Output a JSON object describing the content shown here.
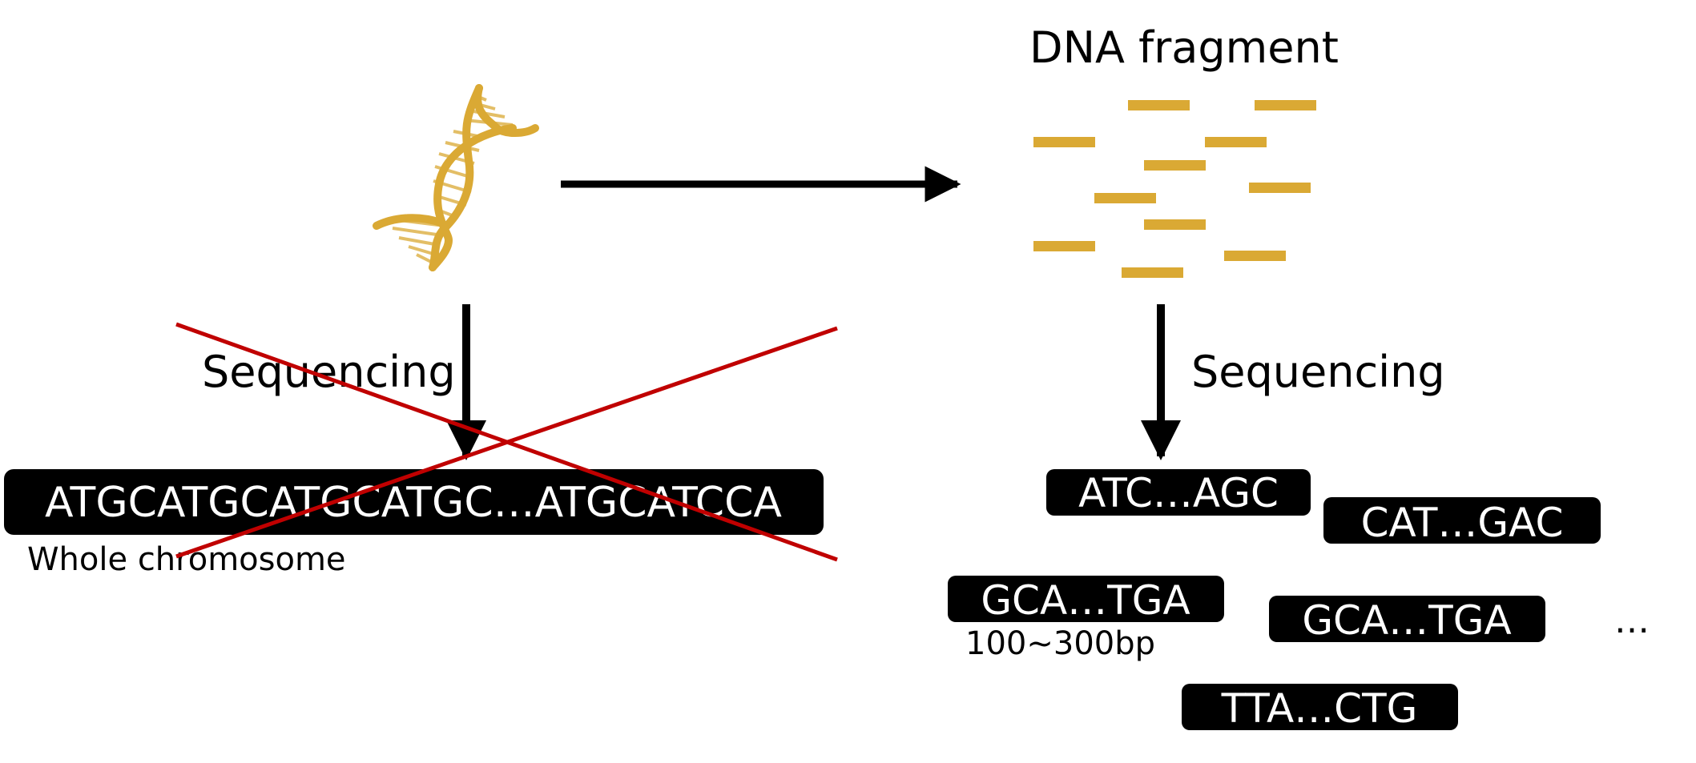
{
  "left": {
    "sequencing_label": "Sequencing",
    "sequence": "ATGCATGCATGCATGC…ATGCATCCA",
    "caption": "Whole chromosome"
  },
  "right": {
    "fragment_title": "DNA fragment",
    "sequencing_label": "Sequencing",
    "reads": [
      "ATC…AGC",
      "CAT…GAC",
      "GCA…TGA",
      "GCA…TGA",
      "TTA…CTG"
    ],
    "read_length": "100~300bp",
    "ellipsis": "…"
  },
  "colors": {
    "dna_gold": "#DAA934",
    "arrow": "#000000",
    "cross": "#C00000",
    "read_box": "#000000",
    "read_text": "#ffffff"
  },
  "icons": {
    "dna": "dna-helix-icon",
    "cross": "red-cross-out"
  }
}
